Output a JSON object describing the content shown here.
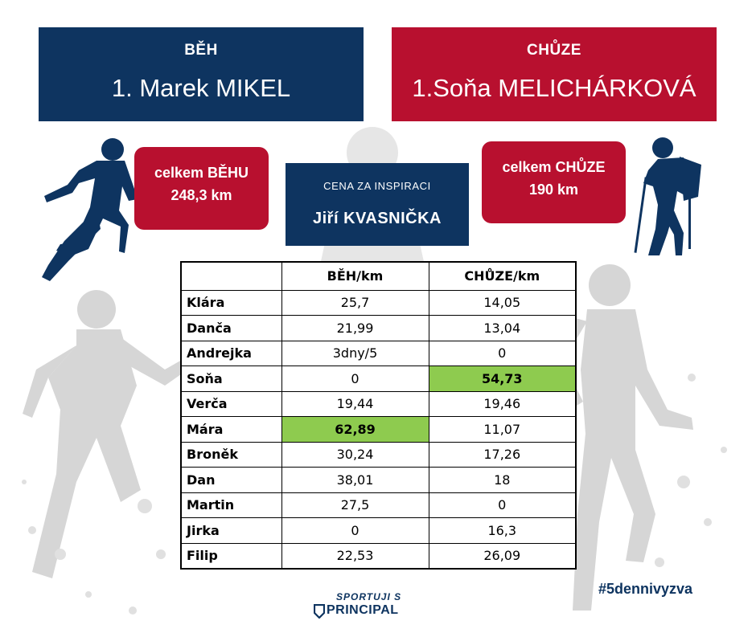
{
  "run": {
    "category": "BĚH",
    "winner": "1. Marek MIKEL"
  },
  "walk": {
    "category": "CHŮZE",
    "winner": "1.Soňa MELICHÁRKOVÁ"
  },
  "run_total": {
    "label": "celkem BĚHU",
    "value": "248,3 km"
  },
  "walk_total": {
    "label": "celkem CHŮZE",
    "value": "190 km"
  },
  "inspiration": {
    "label": "CENA ZA INSPIRACI",
    "winner": "Jiří KVASNIČKA"
  },
  "table": {
    "headers": [
      "",
      "BĚH/km",
      "CHŮZE/km"
    ],
    "rows": [
      {
        "name": "Klára",
        "run": "25,7",
        "walk": "14,05"
      },
      {
        "name": "Danča",
        "run": "21,99",
        "walk": "13,04"
      },
      {
        "name": "Andrejka",
        "run": "3dny/5",
        "walk": "0"
      },
      {
        "name": "Soňa",
        "run": "0",
        "walk": "54,73"
      },
      {
        "name": "Verča",
        "run": "19,44",
        "walk": "19,46"
      },
      {
        "name": "Mára",
        "run": "62,89",
        "walk": "11,07"
      },
      {
        "name": "Broněk",
        "run": "30,24",
        "walk": "17,26"
      },
      {
        "name": "Dan",
        "run": "38,01",
        "walk": "18"
      },
      {
        "name": "Martin",
        "run": "27,5",
        "walk": "0"
      },
      {
        "name": "Jirka",
        "run": "0",
        "walk": "16,3"
      },
      {
        "name": "Filip",
        "run": "22,53",
        "walk": "26,09"
      }
    ]
  },
  "logo": {
    "tagline": "SPORTUJI S",
    "brand": "PRINCIPAL"
  },
  "hashtag": "#5dennivyzva",
  "colors": {
    "navy": "#0e3460",
    "red": "#b8102f",
    "highlight": "#8ecb4f",
    "silhouette": "#d9d9d9"
  }
}
